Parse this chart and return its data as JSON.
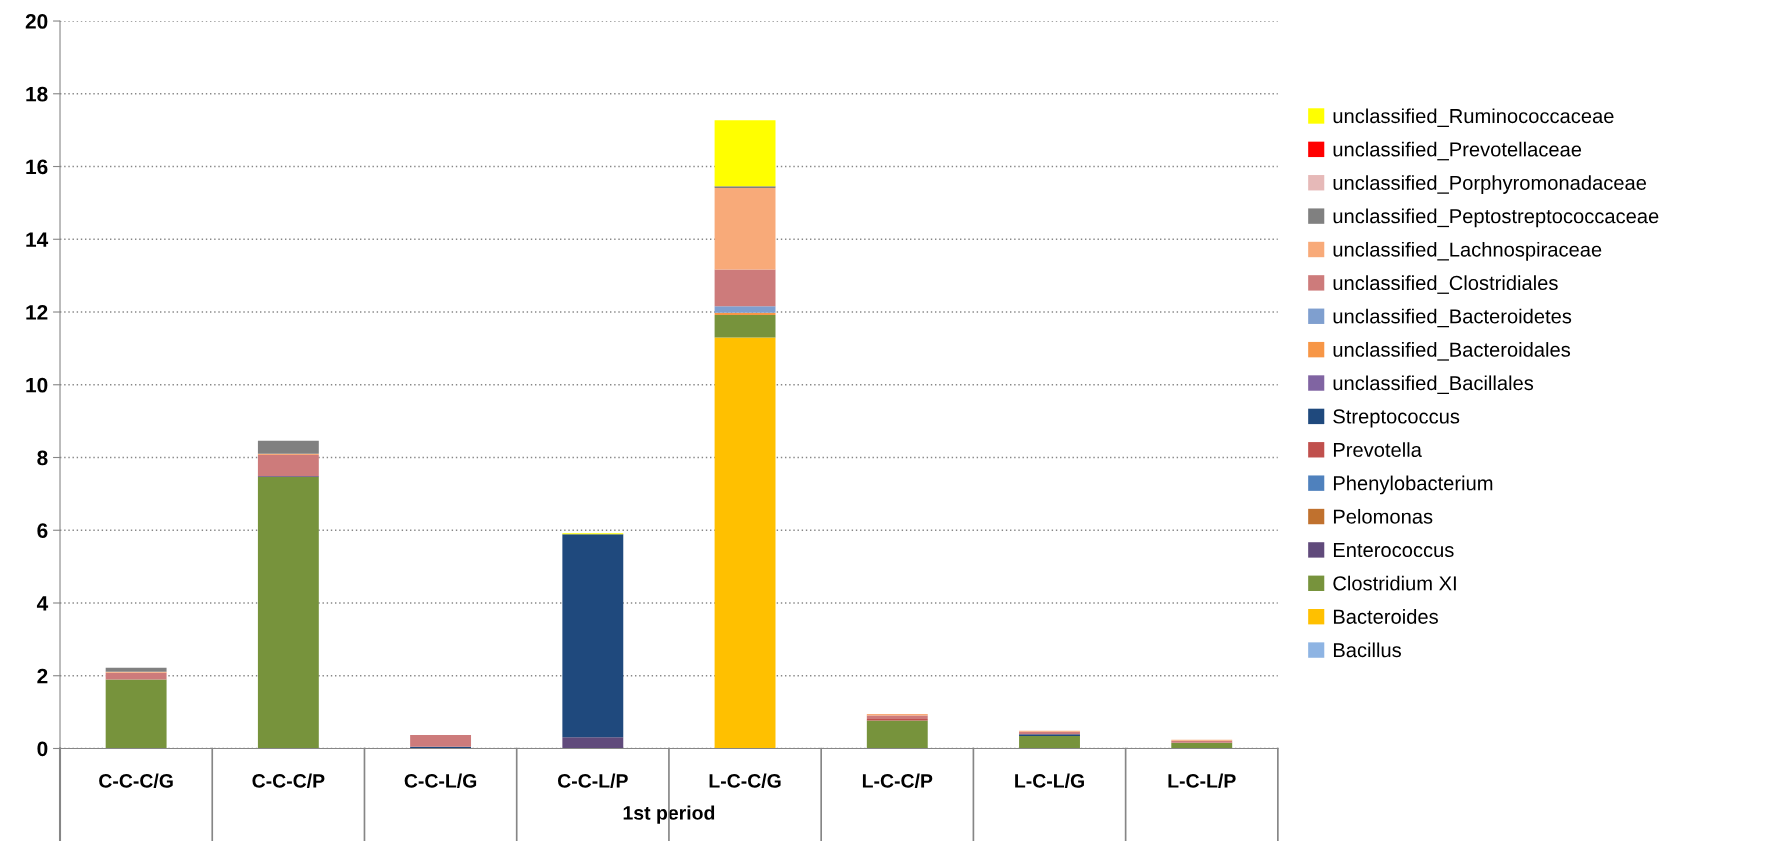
{
  "chart_data": {
    "type": "bar",
    "stacked": true,
    "xlabel": "1st period",
    "categories": [
      "C-C-C/G",
      "C-C-C/P",
      "C-C-L/G",
      "C-C-L/P",
      "L-C-C/G",
      "L-C-C/P",
      "L-C-L/G",
      "L-C-L/P"
    ],
    "ylim": [
      0,
      20
    ],
    "yticks": [
      0,
      2,
      4,
      6,
      8,
      10,
      12,
      14,
      16,
      18,
      20
    ],
    "grid": "y",
    "legend": "right",
    "series": [
      {
        "name": "Bacillus",
        "color": "#8eb4e3",
        "values": [
          null,
          null,
          null,
          null,
          null,
          null,
          null,
          null
        ]
      },
      {
        "name": "Bacteroides",
        "color": "#ffc000",
        "values": [
          null,
          null,
          null,
          null,
          11.3,
          null,
          null,
          null
        ]
      },
      {
        "name": "Clostridium XI",
        "color": "#77933c",
        "values": [
          1.9,
          7.47,
          null,
          null,
          0.62,
          0.77,
          0.34,
          0.16
        ]
      },
      {
        "name": "Enterococcus",
        "color": "#604a7b",
        "values": [
          null,
          0.02,
          null,
          0.31,
          null,
          null,
          null,
          null
        ]
      },
      {
        "name": "Pelomonas",
        "color": "#c0712e",
        "values": [
          null,
          null,
          null,
          null,
          null,
          null,
          null,
          null
        ]
      },
      {
        "name": "Phenylobacterium",
        "color": "#4f81bd",
        "values": [
          null,
          null,
          null,
          null,
          null,
          null,
          null,
          null
        ]
      },
      {
        "name": "Prevotella",
        "color": "#c0504d",
        "values": [
          null,
          null,
          null,
          null,
          null,
          0.04,
          null,
          null
        ]
      },
      {
        "name": "Streptococcus",
        "color": "#1f497d",
        "values": [
          null,
          null,
          0.05,
          5.58,
          null,
          null,
          0.05,
          null
        ]
      },
      {
        "name": "unclassified_Bacillales",
        "color": "#8064a2",
        "values": [
          null,
          null,
          null,
          null,
          null,
          null,
          null,
          null
        ]
      },
      {
        "name": "unclassified_Bacteroidales",
        "color": "#f79646",
        "values": [
          null,
          null,
          null,
          null,
          0.06,
          null,
          null,
          null
        ]
      },
      {
        "name": "unclassified_Bacteroidetes",
        "color": "#7f9fcf",
        "values": [
          null,
          null,
          null,
          null,
          0.18,
          null,
          null,
          null
        ]
      },
      {
        "name": "unclassified_Clostridiales",
        "color": "#cd7b7b",
        "values": [
          0.18,
          0.58,
          0.32,
          null,
          1.01,
          0.1,
          0.07,
          0.05
        ]
      },
      {
        "name": "unclassified_Lachnospiraceae",
        "color": "#f8aa79",
        "values": [
          0.03,
          0.03,
          null,
          null,
          2.24,
          0.04,
          0.03,
          0.03
        ]
      },
      {
        "name": "unclassified_Peptostreptococcaceae",
        "color": "#808080",
        "values": [
          0.11,
          0.36,
          null,
          null,
          0.05,
          null,
          null,
          null
        ]
      },
      {
        "name": "unclassified_Porphyromonadaceae",
        "color": "#e6b9b8",
        "values": [
          null,
          null,
          null,
          null,
          null,
          null,
          null,
          null
        ]
      },
      {
        "name": "unclassified_Prevotellaceae",
        "color": "#ff0000",
        "values": [
          null,
          null,
          null,
          null,
          null,
          null,
          null,
          null
        ]
      },
      {
        "name": "unclassified_Ruminococcaceae",
        "color": "#ffff00",
        "values": [
          null,
          null,
          null,
          0.03,
          1.81,
          null,
          null,
          null
        ]
      }
    ]
  }
}
